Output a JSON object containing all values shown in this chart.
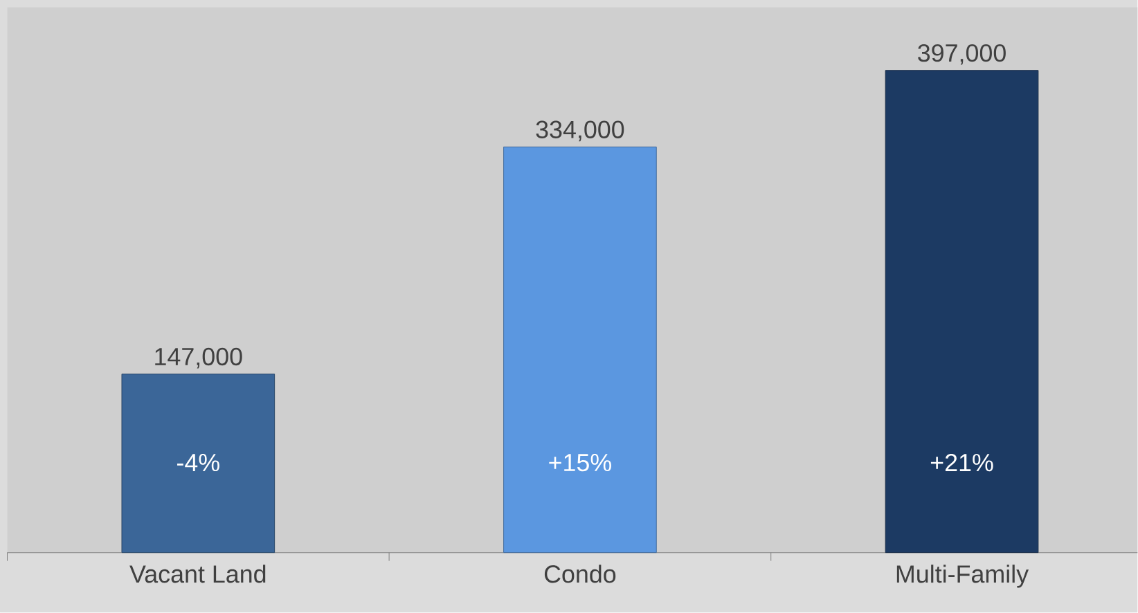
{
  "chart_data": {
    "type": "bar",
    "categories": [
      "Vacant Land",
      "Condo",
      "Multi-Family"
    ],
    "values": [
      147000,
      334000,
      397000
    ],
    "colors": [
      "#3b6698",
      "#5b97e0",
      "#1c3a63"
    ],
    "value_labels": [
      "147,000",
      "334,000",
      "397,000"
    ],
    "ylim": [
      0,
      449000
    ],
    "tick_labels": "x",
    "grid": false,
    "annotations": [
      "-4%",
      "+15%",
      "+21%"
    ]
  }
}
